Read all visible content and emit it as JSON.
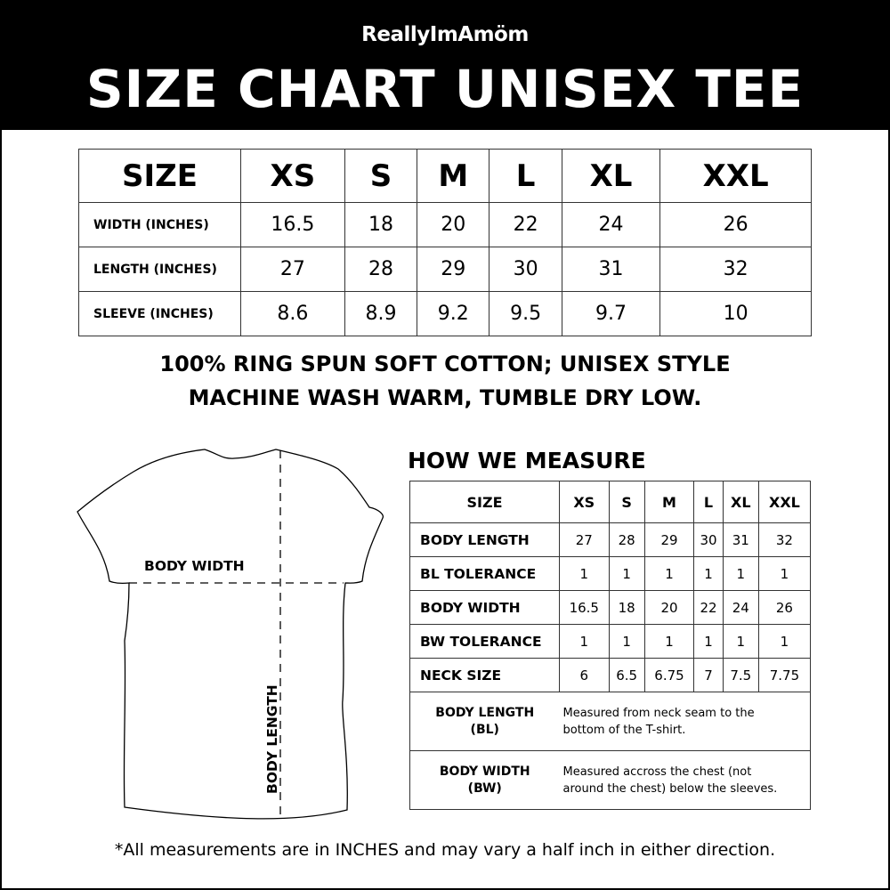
{
  "brand": "ReallyImAmöm",
  "title": "SIZE CHART UNISEX TEE",
  "size_chart": {
    "header": [
      "SIZE",
      "XS",
      "S",
      "M",
      "L",
      "XL",
      "XXL"
    ],
    "rows": [
      {
        "label": "WIDTH (INCHES)",
        "values": [
          "16.5",
          "18",
          "20",
          "22",
          "24",
          "26"
        ]
      },
      {
        "label": "LENGTH (INCHES)",
        "values": [
          "27",
          "28",
          "29",
          "30",
          "31",
          "32"
        ]
      },
      {
        "label": "SLEEVE (INCHES)",
        "values": [
          "8.6",
          "8.9",
          "9.2",
          "9.5",
          "9.7",
          "10"
        ]
      }
    ]
  },
  "notes": [
    "100% RING SPUN SOFT COTTON; UNISEX STYLE",
    "MACHINE WASH WARM, TUMBLE DRY LOW."
  ],
  "diagram": {
    "body_width": "BODY WIDTH",
    "body_length": "BODY LENGTH"
  },
  "measure": {
    "title": "HOW WE MEASURE",
    "header": [
      "SIZE",
      "XS",
      "S",
      "M",
      "L",
      "XL",
      "XXL"
    ],
    "rows": [
      {
        "label": "BODY LENGTH",
        "values": [
          "27",
          "28",
          "29",
          "30",
          "31",
          "32"
        ]
      },
      {
        "label": "BL TOLERANCE",
        "values": [
          "1",
          "1",
          "1",
          "1",
          "1",
          "1"
        ]
      },
      {
        "label": "BODY WIDTH",
        "values": [
          "16.5",
          "18",
          "20",
          "22",
          "24",
          "26"
        ]
      },
      {
        "label": "BW TOLERANCE",
        "values": [
          "1",
          "1",
          "1",
          "1",
          "1",
          "1"
        ]
      },
      {
        "label": "NECK SIZE",
        "values": [
          "6",
          "6.5",
          "6.75",
          "7",
          "7.5",
          "7.75"
        ]
      }
    ],
    "definitions": [
      {
        "term": "BODY LENGTH",
        "abbr": "(BL)",
        "line1": "Measured from neck seam to the",
        "line2": "bottom of the T-shirt."
      },
      {
        "term": "BODY WIDTH",
        "abbr": "(BW)",
        "line1": "Measured accross the chest (not",
        "line2": "around the chest) below the sleeves."
      }
    ]
  },
  "footer": "*All measurements are in INCHES and may vary a half inch in either direction."
}
